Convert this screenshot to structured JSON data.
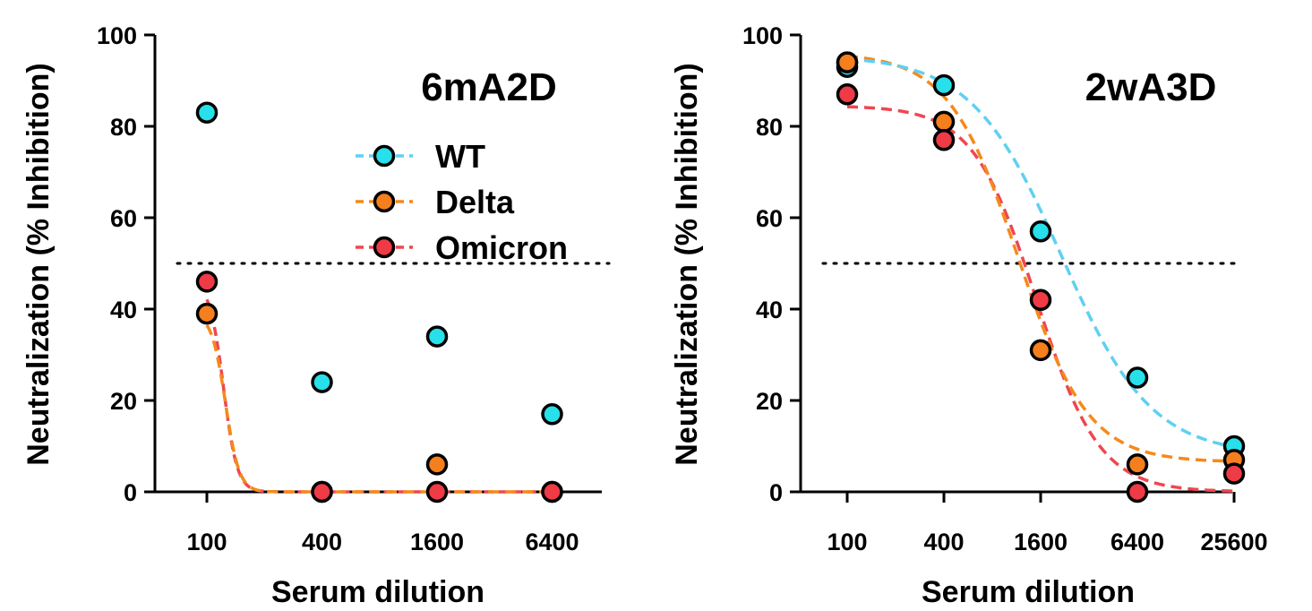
{
  "colors": {
    "WT": "#27e0ea",
    "Delta": "#f47f1c",
    "Omicron": "#ee3b46",
    "fit_WT": "#5fd0f2",
    "fit_Delta": "#f5891c",
    "fit_Omicron": "#ef4651"
  },
  "legend": {
    "items": [
      {
        "label": "WT",
        "color_key": "WT"
      },
      {
        "label": "Delta",
        "color_key": "Delta"
      },
      {
        "label": "Omicron",
        "color_key": "Omicron"
      }
    ]
  },
  "chart_data": [
    {
      "type": "scatter",
      "title": "6mA2D",
      "xlabel": "Serum dilution",
      "ylabel": "Neutralization (% Inhibition)",
      "xscale": "log",
      "xticks": [
        "100",
        "400",
        "1600",
        "6400"
      ],
      "ylim": [
        0,
        100
      ],
      "yticks": [
        "0",
        "20",
        "40",
        "60",
        "80",
        "100"
      ],
      "reference_line": 50,
      "legend": "right",
      "series": [
        {
          "name": "WT",
          "x": [
            100,
            400,
            1600,
            6400
          ],
          "y": [
            83,
            24,
            34,
            17
          ],
          "fit": false
        },
        {
          "name": "Delta",
          "x": [
            100,
            400,
            1600,
            6400
          ],
          "y": [
            39,
            0,
            6,
            0
          ],
          "fit": true
        },
        {
          "name": "Omicron",
          "x": [
            100,
            400,
            1600,
            6400
          ],
          "y": [
            46,
            0,
            0,
            0
          ],
          "fit": true
        }
      ]
    },
    {
      "type": "scatter",
      "title": "2wA3D",
      "xlabel": "Serum dilution",
      "ylabel": "Neutralization (% Inhibition)",
      "xscale": "log",
      "xticks": [
        "100",
        "400",
        "1600",
        "6400",
        "25600"
      ],
      "ylim": [
        0,
        100
      ],
      "yticks": [
        "0",
        "20",
        "40",
        "60",
        "80",
        "100"
      ],
      "reference_line": 50,
      "series": [
        {
          "name": "WT",
          "x": [
            100,
            100,
            400,
            1600,
            6400,
            25600
          ],
          "y": [
            94,
            93,
            89,
            57,
            25,
            10
          ],
          "fit": true
        },
        {
          "name": "Delta",
          "x": [
            100,
            400,
            1600,
            6400,
            25600
          ],
          "y": [
            94,
            81,
            31,
            6,
            7
          ],
          "fit": true
        },
        {
          "name": "Omicron",
          "x": [
            100,
            400,
            1600,
            6400,
            25600
          ],
          "y": [
            87,
            77,
            42,
            0,
            4
          ],
          "fit": true
        }
      ]
    }
  ]
}
